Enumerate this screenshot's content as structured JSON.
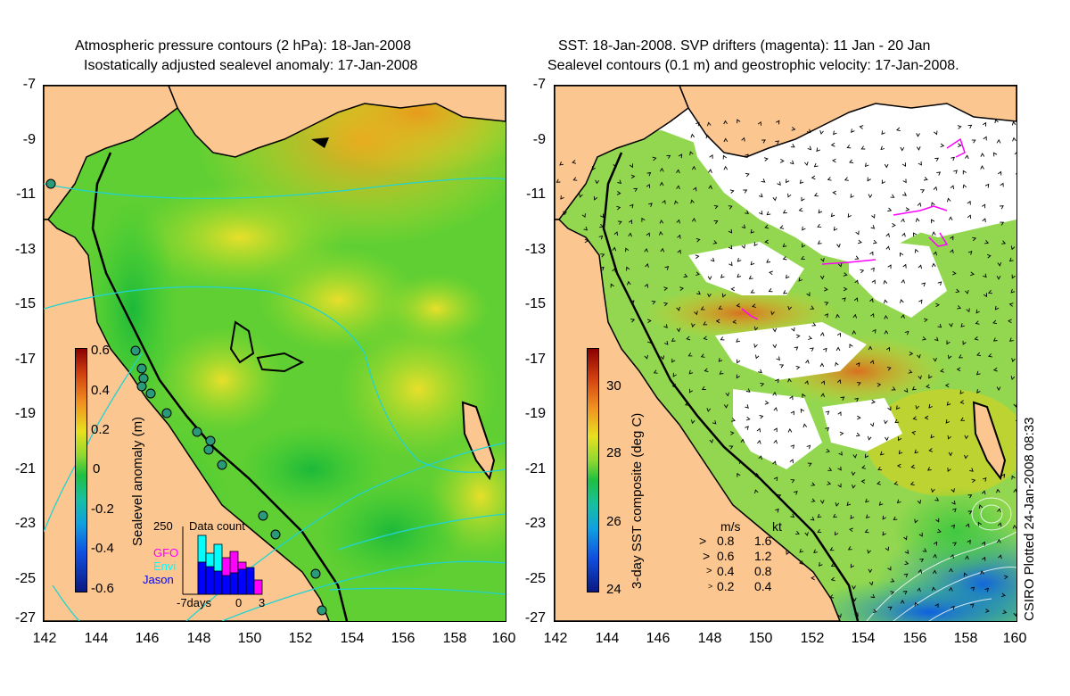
{
  "left_panel": {
    "title_line1": "Atmospheric pressure contours (2 hPa): 18-Jan-2008",
    "title_line2": "Isostatically adjusted sealevel anomaly: 17-Jan-2008",
    "colorbar": {
      "label": "Sealevel anomaly (m)",
      "ticks": [
        "0.6",
        "0.4",
        "0.2",
        "0",
        "-0.2",
        "-0.4",
        "-0.6"
      ]
    },
    "inset": {
      "title": "Data count",
      "ymax_label": "250",
      "series": [
        {
          "name": "GFO",
          "color": "#ff00ff"
        },
        {
          "name": "Envi",
          "color": "#00ffff"
        },
        {
          "name": "Jason",
          "color": "#0000ff"
        }
      ],
      "x_labels": [
        "-7days",
        "0",
        "3"
      ]
    }
  },
  "right_panel": {
    "title_line1": "SST: 18-Jan-2008. SVP drifters (magenta): 11 Jan - 20 Jan",
    "title_line2": "Sealevel contours (0.1 m) and geostrophic velocity: 17-Jan-2008.",
    "colorbar": {
      "label": "3-day SST composite (deg C)",
      "ticks": [
        "30",
        "28",
        "26",
        "24"
      ]
    },
    "velocity_legend": {
      "header_ms": "m/s",
      "header_kt": "kt",
      "rows": [
        {
          "ms": "0.8",
          "kt": "1.6"
        },
        {
          "ms": "0.6",
          "kt": "1.2"
        },
        {
          "ms": "0.4",
          "kt": "0.8"
        },
        {
          "ms": "0.2",
          "kt": "0.4"
        }
      ]
    }
  },
  "axes": {
    "y_ticks": [
      "-7",
      "-9",
      "-11",
      "-13",
      "-15",
      "-17",
      "-19",
      "-21",
      "-23",
      "-25",
      "-27"
    ],
    "x_ticks": [
      "142",
      "144",
      "146",
      "148",
      "150",
      "152",
      "154",
      "156",
      "158",
      "160"
    ]
  },
  "credit": "CSIRO Plotted 24-Jan-2008 08:33",
  "colors": {
    "land": "#fbc690",
    "sea_green": "#33cc33",
    "sea_yellow": "#e6e22a",
    "sea_orange": "#f0a020",
    "cloud": "#ffffff",
    "drifter": "#ff00ff",
    "pressure_contour": "#22d3d3"
  }
}
